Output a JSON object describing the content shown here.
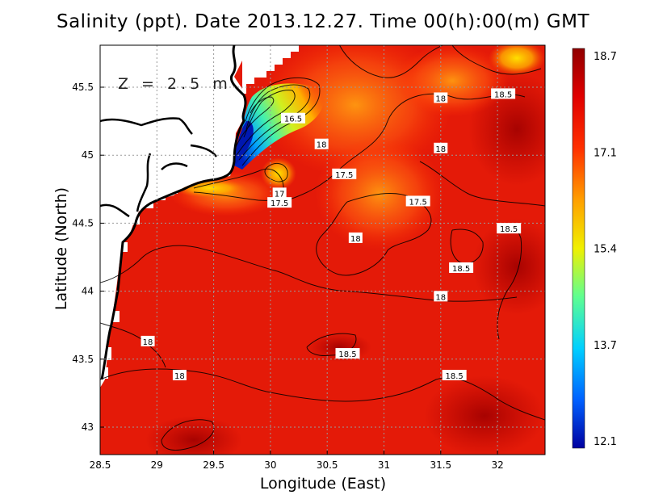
{
  "chart_data": {
    "type": "heatmap",
    "title": "Salinity (ppt). Date 2013.12.27. Time 00(h):00(m) GMT",
    "annotation": "Z = 2.5 m",
    "xlabel": "Longitude (East)",
    "ylabel": "Latitude (North)",
    "xlim": [
      28.5,
      32.4
    ],
    "ylim": [
      42.8,
      45.8
    ],
    "x_ticks": [
      "28.5",
      "29",
      "29.5",
      "30",
      "30.5",
      "31",
      "31.5",
      "32"
    ],
    "y_ticks": [
      "43",
      "43.5",
      "44",
      "44.5",
      "45",
      "45.5"
    ],
    "colorbar": {
      "min": 12.1,
      "max": 18.7,
      "tick_labels": [
        "18.7",
        "17.1",
        "15.4",
        "13.7",
        "12.1"
      ],
      "colors": [
        "#0000a0",
        "#0060ff",
        "#00d0ff",
        "#60ff90",
        "#f0f000",
        "#ffa000",
        "#ff3000",
        "#e00000",
        "#900000"
      ]
    },
    "contour_labels": [
      {
        "text": "16.5",
        "lon": 30.2,
        "lat": 45.27
      },
      {
        "text": "18",
        "lon": 31.5,
        "lat": 45.42
      },
      {
        "text": "18.5",
        "lon": 32.05,
        "lat": 45.45
      },
      {
        "text": "18",
        "lon": 30.45,
        "lat": 45.08
      },
      {
        "text": "18",
        "lon": 31.5,
        "lat": 45.05
      },
      {
        "text": "17.5",
        "lon": 30.65,
        "lat": 44.86
      },
      {
        "text": "17",
        "lon": 30.08,
        "lat": 44.72
      },
      {
        "text": "17.5",
        "lon": 30.08,
        "lat": 44.65
      },
      {
        "text": "17.5",
        "lon": 31.3,
        "lat": 44.66
      },
      {
        "text": "18",
        "lon": 30.75,
        "lat": 44.39
      },
      {
        "text": "18.5",
        "lon": 32.1,
        "lat": 44.46
      },
      {
        "text": "18.5",
        "lon": 31.68,
        "lat": 44.17
      },
      {
        "text": "18",
        "lon": 31.5,
        "lat": 43.96
      },
      {
        "text": "18",
        "lon": 28.92,
        "lat": 43.63
      },
      {
        "text": "18.5",
        "lon": 30.68,
        "lat": 43.54
      },
      {
        "text": "18",
        "lon": 29.2,
        "lat": 43.38
      },
      {
        "text": "18.5",
        "lon": 31.62,
        "lat": 43.38
      }
    ]
  }
}
